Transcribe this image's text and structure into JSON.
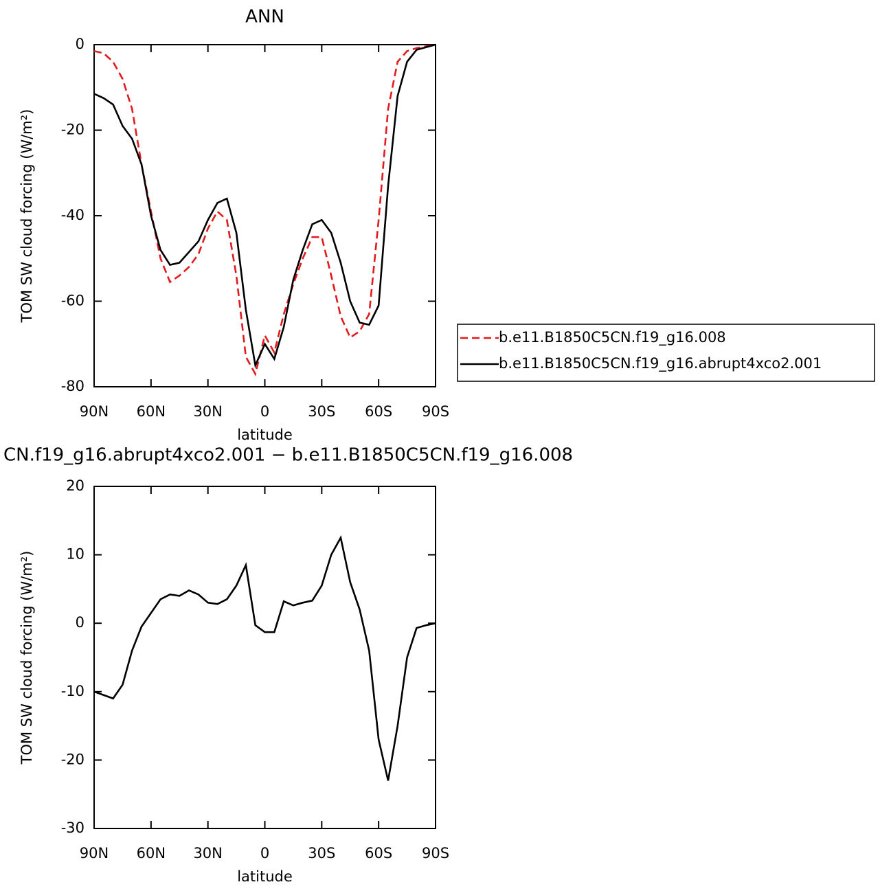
{
  "chart_data": [
    {
      "type": "line",
      "title": "ANN",
      "xlabel": "latitude",
      "ylabel": "TOM SW cloud forcing (W/m²)",
      "x": [
        90,
        85,
        80,
        75,
        70,
        65,
        60,
        55,
        50,
        45,
        40,
        35,
        30,
        25,
        20,
        15,
        10,
        5,
        0,
        -5,
        -10,
        -15,
        -20,
        -25,
        -30,
        -35,
        -40,
        -45,
        -50,
        -55,
        -60,
        -65,
        -70,
        -75,
        -80,
        -85,
        -90
      ],
      "series": [
        {
          "name": "b.e11.B1850C5CN.f19_g16.008",
          "color": "#e31a1c",
          "line_style": "dashed",
          "values": [
            -1.5,
            -2,
            -4,
            -8,
            -15,
            -28,
            -39,
            -50,
            -55.5,
            -54,
            -52,
            -49,
            -43,
            -39,
            -41,
            -54,
            -73,
            -77,
            -68,
            -72,
            -63,
            -56,
            -50,
            -45,
            -45,
            -54,
            -63.5,
            -68.5,
            -67,
            -63,
            -41,
            -15,
            -4,
            -1.5,
            -0.8,
            -0.4,
            0
          ]
        },
        {
          "name": "b.e11.B1850C5CN.f19_g16.abrupt4xco2.001",
          "color": "#000000",
          "line_style": "solid",
          "values": [
            -11.5,
            -12.5,
            -14,
            -19,
            -22,
            -28,
            -40,
            -48,
            -51.5,
            -51,
            -48.5,
            -46,
            -41,
            -37,
            -36,
            -44,
            -62,
            -75,
            -70,
            -73.5,
            -66,
            -55,
            -48,
            -42,
            -41,
            -44,
            -51,
            -60,
            -65,
            -65.5,
            -61,
            -33,
            -12,
            -4,
            -1.2,
            -0.6,
            0
          ]
        }
      ],
      "xlim": [
        90,
        -90
      ],
      "xticks": [
        {
          "value": 90,
          "label": "90N"
        },
        {
          "value": 60,
          "label": "60N"
        },
        {
          "value": 30,
          "label": "30N"
        },
        0,
        {
          "value": -30,
          "label": "30S"
        },
        {
          "value": -60,
          "label": "60S"
        },
        {
          "value": -90,
          "label": "90S"
        }
      ],
      "ylim": [
        -80,
        0
      ],
      "yticks": [
        0,
        -20,
        -40,
        -60,
        -80
      ],
      "grid": false,
      "legend": "right"
    },
    {
      "type": "line",
      "title": "CN.f19_g16.abrupt4xco2.001 − b.e11.B1850C5CN.f19_g16.008",
      "xlabel": "latitude",
      "ylabel": "TOM SW cloud forcing (W/m²)",
      "x": [
        90,
        85,
        80,
        75,
        70,
        65,
        60,
        55,
        50,
        45,
        40,
        35,
        30,
        25,
        20,
        15,
        10,
        5,
        0,
        -5,
        -10,
        -15,
        -20,
        -25,
        -30,
        -35,
        -40,
        -45,
        -50,
        -55,
        -60,
        -65,
        -70,
        -75,
        -80,
        -85,
        -90
      ],
      "values": [
        -10,
        -10.5,
        -11,
        -9,
        -4,
        -0.5,
        1.5,
        3.5,
        4.2,
        4,
        4.8,
        4.2,
        3,
        2.8,
        3.5,
        5.5,
        8.5,
        -0.3,
        -1.3,
        -1.3,
        3.2,
        2.6,
        3,
        3.3,
        5.5,
        10,
        12.5,
        6,
        2,
        -4,
        -17,
        -23,
        -15,
        -5,
        -0.7,
        -0.3,
        0
      ],
      "color": "#000000",
      "xlim": [
        90,
        -90
      ],
      "xticks": [
        {
          "value": 90,
          "label": "90N"
        },
        {
          "value": 60,
          "label": "60N"
        },
        {
          "value": 30,
          "label": "30N"
        },
        0,
        {
          "value": -30,
          "label": "30S"
        },
        {
          "value": -60,
          "label": "60S"
        },
        {
          "value": -90,
          "label": "90S"
        }
      ],
      "ylim": [
        -30,
        20
      ],
      "yticks": [
        20,
        10,
        0,
        -10,
        -20,
        -30
      ],
      "grid": false
    }
  ]
}
